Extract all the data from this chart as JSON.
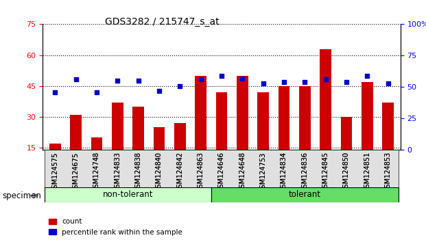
{
  "title": "GDS3282 / 215747_s_at",
  "samples": [
    "GSM124575",
    "GSM124675",
    "GSM124748",
    "GSM124833",
    "GSM124838",
    "GSM124840",
    "GSM124842",
    "GSM124863",
    "GSM124646",
    "GSM124648",
    "GSM124753",
    "GSM124834",
    "GSM124836",
    "GSM124845",
    "GSM124850",
    "GSM124851",
    "GSM124853"
  ],
  "counts": [
    17,
    31,
    20,
    37,
    35,
    25,
    27,
    50,
    42,
    50,
    42,
    45,
    45,
    63,
    30,
    47,
    37
  ],
  "percentile_ranks": [
    46,
    56,
    46,
    55,
    55,
    47,
    51,
    56,
    59,
    57,
    53,
    54,
    54,
    56,
    54,
    59,
    53
  ],
  "group": [
    "non-tolerant",
    "non-tolerant",
    "non-tolerant",
    "non-tolerant",
    "non-tolerant",
    "non-tolerant",
    "non-tolerant",
    "non-tolerant",
    "tolerant",
    "tolerant",
    "tolerant",
    "tolerant",
    "tolerant",
    "tolerant",
    "tolerant",
    "tolerant",
    "tolerant"
  ],
  "bar_color": "#cc0000",
  "dot_color": "#0000cc",
  "ylim_left": [
    14,
    75
  ],
  "ylim_right": [
    0,
    100
  ],
  "yticks_left": [
    15,
    30,
    45,
    60,
    75
  ],
  "yticks_right": [
    0,
    25,
    50,
    75,
    100
  ],
  "non_tolerant_color": "#ccffcc",
  "tolerant_color": "#66dd66",
  "non_tolerant_count": 8,
  "group_label": "specimen"
}
